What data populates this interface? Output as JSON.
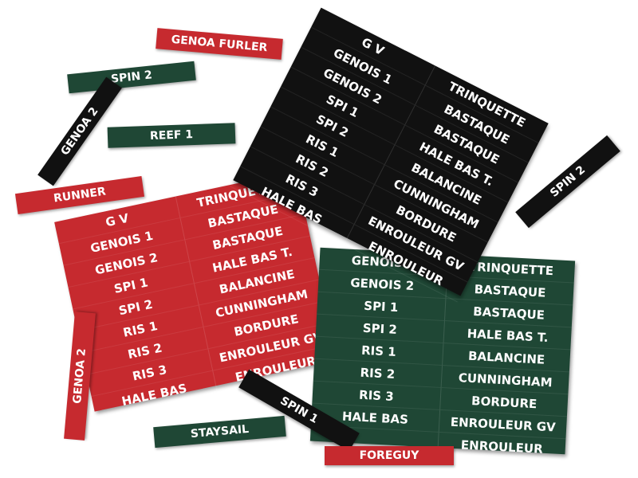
{
  "labels": [
    {
      "text": "GENOA FURLER"
    },
    {
      "text": "SPIN 2"
    },
    {
      "text": "GENOA 2"
    },
    {
      "text": "REEF 1"
    },
    {
      "text": "RUNNER"
    },
    {
      "text": "SPIN 2"
    },
    {
      "text": "GENOA 2"
    },
    {
      "text": "STAYSAIL"
    },
    {
      "text": "SPIN 1"
    },
    {
      "text": "FOREGUY"
    }
  ],
  "sheets": [
    {
      "left": [
        "G V",
        "GENOIS 1",
        "GENOIS 2",
        "SPI 1",
        "SPI 2",
        "RIS 1",
        "RIS 2",
        "RIS 3",
        "HALE BAS"
      ],
      "right": [
        "TRINQUETTE",
        "BASTAQUE",
        "BASTAQUE",
        "HALE BAS T.",
        "BALANCINE",
        "CUNNINGHAM",
        "BORDURE",
        "ENROULEUR GV",
        "ENROULEUR"
      ]
    },
    {
      "left": [
        "GENOIS 1",
        "GENOIS 2",
        "SPI 1",
        "SPI 2",
        "RIS 1",
        "RIS 2",
        "RIS 3",
        "HALE BAS"
      ],
      "right": [
        "TRINQUETTE",
        "BASTAQUE",
        "BASTAQUE",
        "HALE BAS T.",
        "BALANCINE",
        "CUNNINGHAM",
        "BORDURE",
        "ENROULEUR GV",
        "ENROULEUR"
      ]
    },
    {
      "left": [
        "G V",
        "GENOIS 1",
        "GENOIS 2",
        "SPI 1",
        "SPI 2",
        "RIS 1",
        "RIS 2",
        "RIS 3",
        "HALE BAS"
      ],
      "right": [
        "TRINQUETTE",
        "BASTAQUE",
        "BASTAQUE",
        "HALE BAS T.",
        "BALANCINE",
        "CUNNINGHAM",
        "BORDURE",
        "ENROULEUR GV",
        "ENROULEUR"
      ]
    }
  ]
}
